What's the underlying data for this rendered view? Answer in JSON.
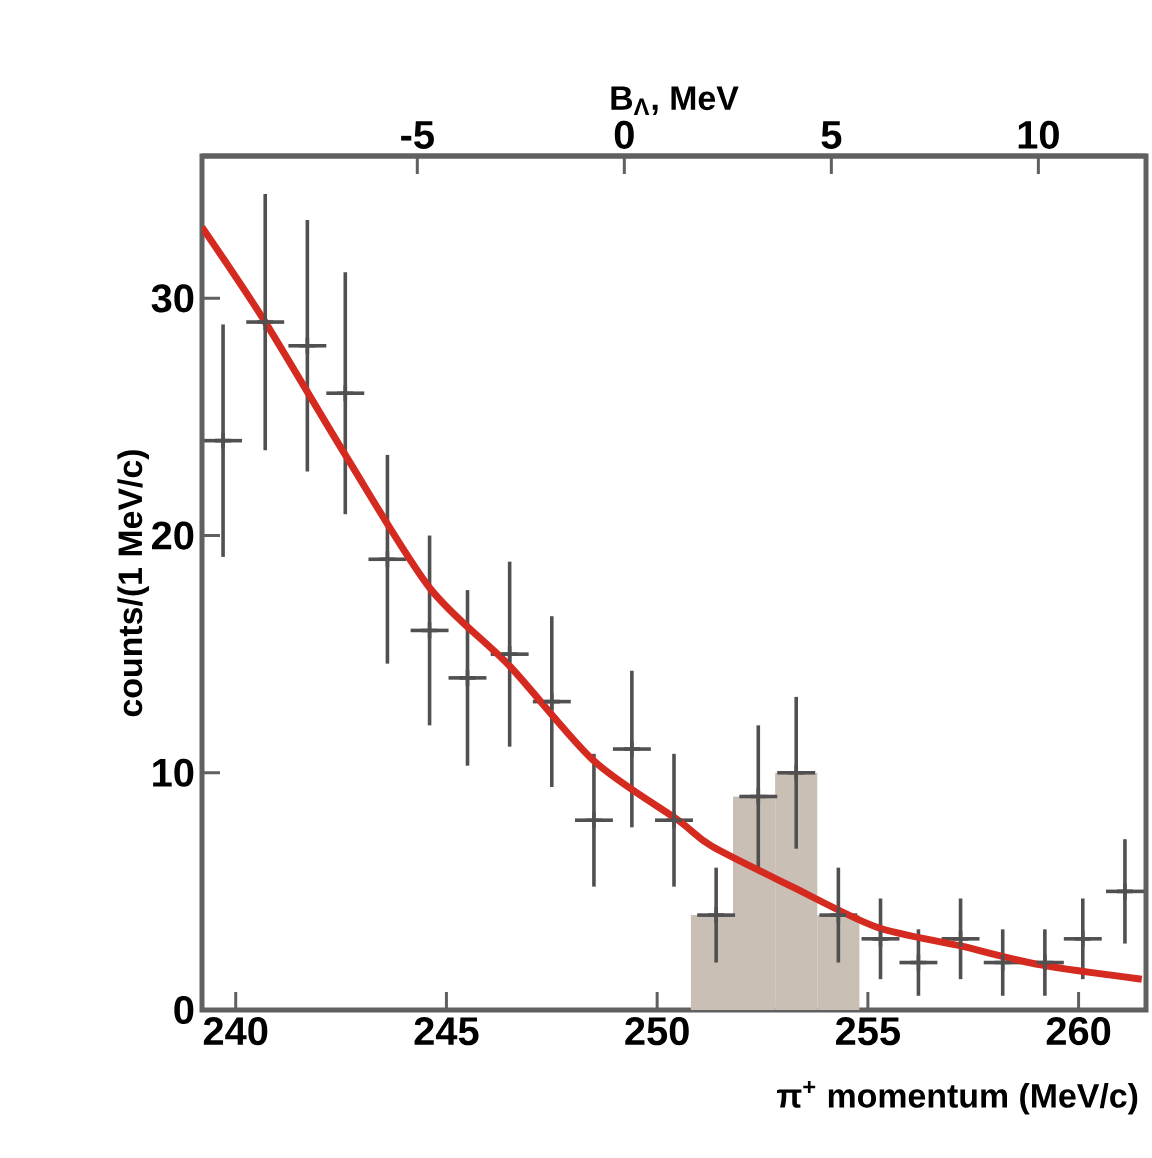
{
  "chart_data": {
    "type": "scatter",
    "xlabel": "π$^{+}$ momentum (MeV/c)",
    "ylabel": "counts/(1 MeV/c)",
    "x2label": "B$_{Λ}$, MeV",
    "xlim": [
      239.2,
      261.6
    ],
    "xticks": [
      240,
      245,
      250,
      255,
      260
    ],
    "ylim": [
      0,
      36
    ],
    "yticks": [
      0,
      10,
      20,
      30
    ],
    "x2lim": [
      -10.2,
      12.6
    ],
    "x2ticks": [
      -5,
      0,
      5,
      10
    ],
    "grid": false,
    "series": [
      {
        "type": "histogram",
        "color": "#c9bfb5",
        "bins": [
          250.8,
          251.8,
          252.8,
          253.8,
          254.8
        ],
        "values": [
          4,
          9,
          10,
          4
        ]
      },
      {
        "type": "scatter",
        "color": "#505050",
        "marker": "cross",
        "x": [
          239.7,
          240.7,
          241.7,
          242.6,
          243.6,
          244.6,
          245.5,
          246.5,
          247.5,
          248.5,
          249.4,
          250.4,
          251.4,
          252.4,
          253.3,
          254.3,
          255.3,
          256.2,
          257.2,
          258.2,
          259.2,
          260.1,
          261.1
        ],
        "values": [
          24,
          29,
          28,
          26,
          19,
          16,
          14,
          15,
          13,
          8,
          11,
          8,
          4,
          9,
          10,
          4,
          3,
          2,
          3,
          2,
          2,
          3,
          5
        ],
        "errors": [
          4.9,
          5.4,
          5.3,
          5.1,
          4.4,
          4,
          3.7,
          3.9,
          3.6,
          2.8,
          3.3,
          2.8,
          2,
          3,
          3.2,
          2,
          1.7,
          1.4,
          1.7,
          1.4,
          1.4,
          1.7,
          2.2
        ],
        "xerrors": [
          0.45,
          0.45,
          0.45,
          0.45,
          0.45,
          0.45,
          0.45,
          0.45,
          0.45,
          0.45,
          0.45,
          0.45,
          0.45,
          0.45,
          0.45,
          0.45,
          0.45,
          0.45,
          0.45,
          0.45,
          0.45,
          0.45,
          0.45
        ]
      },
      {
        "type": "line",
        "color": "#d42a20",
        "x": [
          239.2,
          240.7,
          242.6,
          244.6,
          246.5,
          248.5,
          250.5,
          251.3,
          253.2,
          255.2,
          257.2,
          259.1,
          261.5
        ],
        "values": [
          33,
          29,
          23.4,
          17.8,
          14.5,
          10.5,
          8,
          6.9,
          5.2,
          3.5,
          2.7,
          1.9,
          1.3
        ]
      }
    ]
  }
}
